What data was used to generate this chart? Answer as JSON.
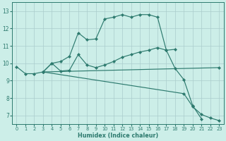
{
  "xlabel": "Humidex (Indice chaleur)",
  "bg_color": "#cceee8",
  "grid_color": "#aacccc",
  "line_color": "#2d7a6e",
  "xlim": [
    -0.5,
    23.5
  ],
  "ylim": [
    6.5,
    13.5
  ],
  "xticks": [
    0,
    1,
    2,
    3,
    4,
    5,
    6,
    7,
    8,
    9,
    10,
    11,
    12,
    13,
    14,
    15,
    16,
    17,
    18,
    19,
    20,
    21,
    22,
    23
  ],
  "yticks": [
    7,
    8,
    9,
    10,
    11,
    12,
    13
  ],
  "line1": {
    "x": [
      0,
      1,
      2,
      3,
      4,
      5,
      6,
      7,
      8,
      9,
      10,
      11,
      12,
      13,
      14,
      15,
      16,
      17,
      18,
      19,
      20,
      21
    ],
    "y": [
      9.8,
      9.4,
      9.4,
      9.5,
      10.0,
      10.1,
      10.4,
      11.75,
      11.35,
      11.4,
      12.55,
      12.65,
      12.8,
      12.65,
      12.8,
      12.8,
      12.65,
      10.75,
      9.7,
      9.05,
      7.55,
      6.8
    ]
  },
  "line2": {
    "x": [
      3,
      4,
      5,
      6,
      7,
      8,
      9,
      10,
      11,
      12,
      13,
      14,
      15,
      16,
      17,
      18
    ],
    "y": [
      9.5,
      10.0,
      9.55,
      9.6,
      10.5,
      9.9,
      9.75,
      9.9,
      10.1,
      10.35,
      10.5,
      10.65,
      10.75,
      10.9,
      10.75,
      10.8
    ]
  },
  "line3": {
    "x": [
      3,
      23
    ],
    "y": [
      9.5,
      9.75
    ]
  },
  "line4": {
    "x": [
      3,
      19,
      20,
      21,
      22,
      23
    ],
    "y": [
      9.5,
      8.25,
      7.5,
      7.05,
      6.85,
      6.7
    ]
  }
}
